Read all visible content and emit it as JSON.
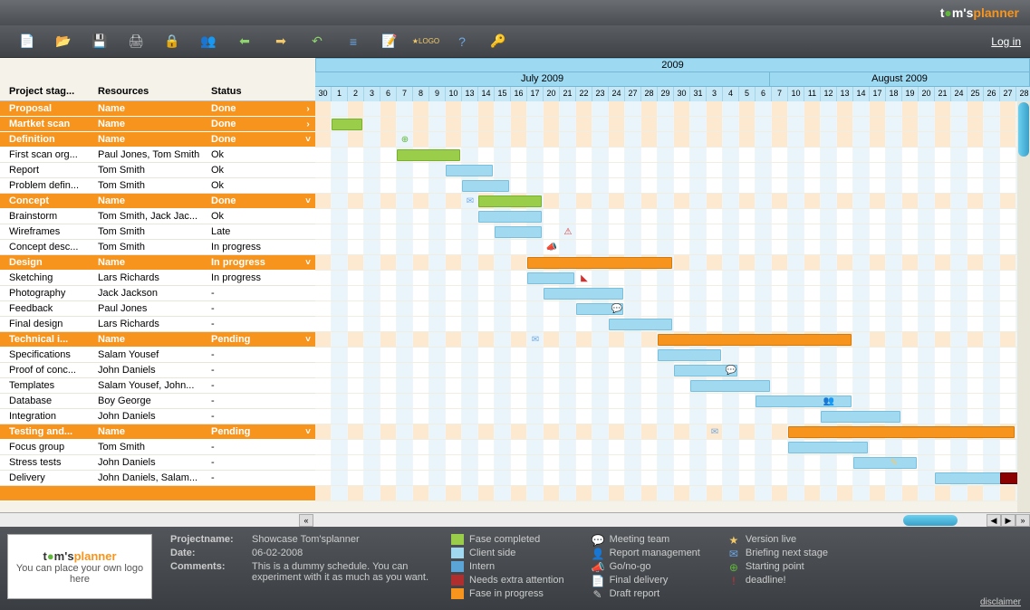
{
  "brand": {
    "t": "t",
    "circle": "●",
    "ms": "m's",
    "planner": "planner"
  },
  "login": "Log in",
  "toolbar_icons": [
    {
      "name": "new-file-icon",
      "glyph": "📄",
      "color": "#fff"
    },
    {
      "name": "open-icon",
      "glyph": "📂",
      "color": "#f4c96a"
    },
    {
      "name": "save-icon",
      "glyph": "💾",
      "color": "#6ea8e8"
    },
    {
      "name": "print-icon",
      "glyph": "🖨",
      "color": "#ccc"
    },
    {
      "name": "lock-icon",
      "glyph": "🔒",
      "color": "#f4c96a"
    },
    {
      "name": "users-icon",
      "glyph": "👥",
      "color": "#8fd46e"
    },
    {
      "name": "import-icon",
      "glyph": "⬅",
      "color": "#8fd46e"
    },
    {
      "name": "export-icon",
      "glyph": "➡",
      "color": "#f4c96a"
    },
    {
      "name": "undo-icon",
      "glyph": "↶",
      "color": "#8fd46e"
    },
    {
      "name": "settings-icon",
      "glyph": "≡",
      "color": "#6ea8e8"
    },
    {
      "name": "doc-icon",
      "glyph": "📝",
      "color": "#f4c96a"
    },
    {
      "name": "logo-icon",
      "glyph": "★LOGO",
      "color": "#f4c96a"
    },
    {
      "name": "help-icon",
      "glyph": "?",
      "color": "#6ea8e8"
    },
    {
      "name": "key-icon",
      "glyph": "🔑",
      "color": "#f4c96a"
    }
  ],
  "headers": {
    "stage": "Project stag...",
    "resources": "Resources",
    "status": "Status"
  },
  "year": "2009",
  "months": [
    {
      "label": "July 2009",
      "span": 28
    },
    {
      "label": "August 2009",
      "span": 16
    }
  ],
  "days": [
    "30",
    "1",
    "2",
    "3",
    "6",
    "7",
    "8",
    "9",
    "10",
    "13",
    "14",
    "15",
    "16",
    "17",
    "20",
    "21",
    "22",
    "23",
    "24",
    "27",
    "28",
    "29",
    "30",
    "31",
    "3",
    "4",
    "5",
    "6",
    "7",
    "10",
    "11",
    "12",
    "13",
    "14",
    "17",
    "18",
    "19",
    "20",
    "21",
    "24",
    "25",
    "26",
    "27",
    "28"
  ],
  "rows": [
    {
      "type": "group",
      "stage": "Proposal",
      "res": "Name",
      "status": "Done",
      "chev": "›",
      "bars": []
    },
    {
      "type": "group",
      "stage": "Martket scan",
      "res": "Name",
      "status": "Done",
      "chev": "›",
      "bars": [
        {
          "start": 1,
          "len": 2,
          "cls": "green"
        }
      ]
    },
    {
      "type": "group",
      "stage": "Definition",
      "res": "Name",
      "status": "Done",
      "chev": "˅",
      "bars": [],
      "icons": [
        {
          "pos": 5,
          "glyph": "⊕",
          "color": "#5fb63a"
        }
      ]
    },
    {
      "type": "task",
      "stage": "First scan org...",
      "res": "Paul Jones, Tom Smith",
      "status": "Ok",
      "bars": [
        {
          "start": 5,
          "len": 4,
          "cls": "green"
        }
      ]
    },
    {
      "type": "task",
      "stage": "Report",
      "res": "Tom Smith",
      "status": "Ok",
      "bars": [
        {
          "start": 8,
          "len": 3,
          "cls": "blue"
        }
      ]
    },
    {
      "type": "task",
      "stage": "Problem defin...",
      "res": "Tom Smith",
      "status": "Ok",
      "bars": [
        {
          "start": 9,
          "len": 3,
          "cls": "blue"
        }
      ]
    },
    {
      "type": "group",
      "stage": "Concept",
      "res": "Name",
      "status": "Done",
      "chev": "˅",
      "bars": [
        {
          "start": 10,
          "len": 4,
          "cls": "green"
        }
      ],
      "icons": [
        {
          "pos": 9,
          "glyph": "✉",
          "color": "#6ea8e8"
        }
      ]
    },
    {
      "type": "task",
      "stage": "Brainstorm",
      "res": "Tom Smith, Jack Jac...",
      "status": "Ok",
      "bars": [
        {
          "start": 10,
          "len": 4,
          "cls": "blue"
        }
      ]
    },
    {
      "type": "task",
      "stage": "Wireframes",
      "res": "Tom Smith",
      "status": "Late",
      "bars": [
        {
          "start": 11,
          "len": 3,
          "cls": "blue"
        }
      ],
      "icons": [
        {
          "pos": 15,
          "glyph": "⚠",
          "color": "#d32f2f"
        }
      ]
    },
    {
      "type": "task",
      "stage": "Concept desc...",
      "res": "Tom Smith",
      "status": "In progress",
      "bars": [],
      "icons": [
        {
          "pos": 14,
          "glyph": "📣",
          "color": "#f4c96a"
        }
      ]
    },
    {
      "type": "group",
      "stage": "Design",
      "res": "Name",
      "status": "In progress",
      "chev": "˅",
      "bars": [
        {
          "start": 13,
          "len": 9,
          "cls": "orange"
        }
      ]
    },
    {
      "type": "task",
      "stage": "Sketching",
      "res": "Lars Richards",
      "status": "In progress",
      "bars": [
        {
          "start": 13,
          "len": 3,
          "cls": "blue"
        }
      ],
      "icons": [
        {
          "pos": 16,
          "glyph": "◣",
          "color": "#d32f2f"
        }
      ]
    },
    {
      "type": "task",
      "stage": "Photography",
      "res": "Jack Jackson",
      "status": "-",
      "bars": [
        {
          "start": 14,
          "len": 5,
          "cls": "blue"
        }
      ]
    },
    {
      "type": "task",
      "stage": "Feedback",
      "res": "Paul Jones",
      "status": "-",
      "bars": [
        {
          "start": 16,
          "len": 3,
          "cls": "blue"
        }
      ],
      "icons": [
        {
          "pos": 18,
          "glyph": "💬",
          "color": "#6ea8e8"
        }
      ]
    },
    {
      "type": "task",
      "stage": "Final design",
      "res": "Lars Richards",
      "status": "-",
      "bars": [
        {
          "start": 18,
          "len": 4,
          "cls": "blue"
        }
      ]
    },
    {
      "type": "group",
      "stage": "Technical i...",
      "res": "Name",
      "status": "Pending",
      "chev": "˅",
      "bars": [
        {
          "start": 21,
          "len": 12,
          "cls": "orange"
        }
      ],
      "icons": [
        {
          "pos": 13,
          "glyph": "✉",
          "color": "#6ea8e8"
        }
      ]
    },
    {
      "type": "task",
      "stage": "Specifications",
      "res": "Salam Yousef",
      "status": "-",
      "bars": [
        {
          "start": 21,
          "len": 4,
          "cls": "blue"
        }
      ]
    },
    {
      "type": "task",
      "stage": "Proof of conc...",
      "res": "John Daniels",
      "status": "-",
      "bars": [
        {
          "start": 22,
          "len": 4,
          "cls": "blue"
        }
      ],
      "icons": [
        {
          "pos": 25,
          "glyph": "💬",
          "color": "#6ea8e8"
        }
      ]
    },
    {
      "type": "task",
      "stage": "Templates",
      "res": "Salam Yousef, John...",
      "status": "-",
      "bars": [
        {
          "start": 23,
          "len": 5,
          "cls": "blue"
        }
      ]
    },
    {
      "type": "task",
      "stage": "Database",
      "res": "Boy George",
      "status": "-",
      "bars": [
        {
          "start": 27,
          "len": 6,
          "cls": "blue"
        }
      ],
      "icons": [
        {
          "pos": 31,
          "glyph": "👥",
          "color": "#f4a261"
        }
      ]
    },
    {
      "type": "task",
      "stage": "Integration",
      "res": "John Daniels",
      "status": "-",
      "bars": [
        {
          "start": 31,
          "len": 5,
          "cls": "blue"
        }
      ]
    },
    {
      "type": "group",
      "stage": "Testing and...",
      "res": "Name",
      "status": "Pending",
      "chev": "˅",
      "bars": [
        {
          "start": 29,
          "len": 14,
          "cls": "orange"
        }
      ],
      "icons": [
        {
          "pos": 24,
          "glyph": "✉",
          "color": "#6ea8e8"
        }
      ]
    },
    {
      "type": "task",
      "stage": "Focus group",
      "res": "Tom Smith",
      "status": "-",
      "bars": [
        {
          "start": 29,
          "len": 5,
          "cls": "blue"
        }
      ]
    },
    {
      "type": "task",
      "stage": "Stress tests",
      "res": "John Daniels",
      "status": "-",
      "bars": [
        {
          "start": 33,
          "len": 4,
          "cls": "blue"
        }
      ],
      "icons": [
        {
          "pos": 35,
          "glyph": "✎",
          "color": "#f4c96a"
        }
      ]
    },
    {
      "type": "task",
      "stage": "Delivery",
      "res": "John Daniels, Salam...",
      "status": "-",
      "bars": [
        {
          "start": 38,
          "len": 5,
          "cls": "blue"
        },
        {
          "start": 42,
          "len": 2,
          "cls": "darkred"
        }
      ]
    },
    {
      "type": "group",
      "stage": "",
      "res": "",
      "status": "",
      "chev": "",
      "bars": []
    }
  ],
  "footer": {
    "logobox": {
      "brand_t": "t",
      "brand_ms": "m's",
      "brand_planner": "planner",
      "text": "You can place your own logo here"
    },
    "meta": [
      {
        "label": "Projectname:",
        "val": "Showcase Tom'splanner"
      },
      {
        "label": "Date:",
        "val": "06-02-2008"
      },
      {
        "label": "Comments:",
        "val": "This is a dummy schedule. You can experiment with it as much as you want."
      }
    ],
    "legend1": [
      {
        "sw": "#9ace4a",
        "text": "Fase completed"
      },
      {
        "sw": "#a1d9f0",
        "text": "Client side"
      },
      {
        "sw": "#5aa5d6",
        "text": "Intern"
      },
      {
        "sw": "#b02e2e",
        "text": "Needs extra attention"
      },
      {
        "sw": "#f7941e",
        "text": "Fase in progress"
      }
    ],
    "legend2": [
      {
        "glyph": "💬",
        "text": "Meeting team"
      },
      {
        "glyph": "👤",
        "text": "Report management"
      },
      {
        "glyph": "📣",
        "text": "Go/no-go"
      },
      {
        "glyph": "📄",
        "text": "Final delivery"
      },
      {
        "glyph": "✎",
        "text": "Draft report"
      }
    ],
    "legend3": [
      {
        "glyph": "★",
        "color": "#f4c96a",
        "text": "Version live"
      },
      {
        "glyph": "✉",
        "color": "#6ea8e8",
        "text": "Briefing next stage"
      },
      {
        "glyph": "⊕",
        "color": "#5fb63a",
        "text": "Starting point"
      },
      {
        "glyph": "!",
        "color": "#d32f2f",
        "text": "deadline!"
      }
    ],
    "disclaimer": "disclaimer"
  }
}
